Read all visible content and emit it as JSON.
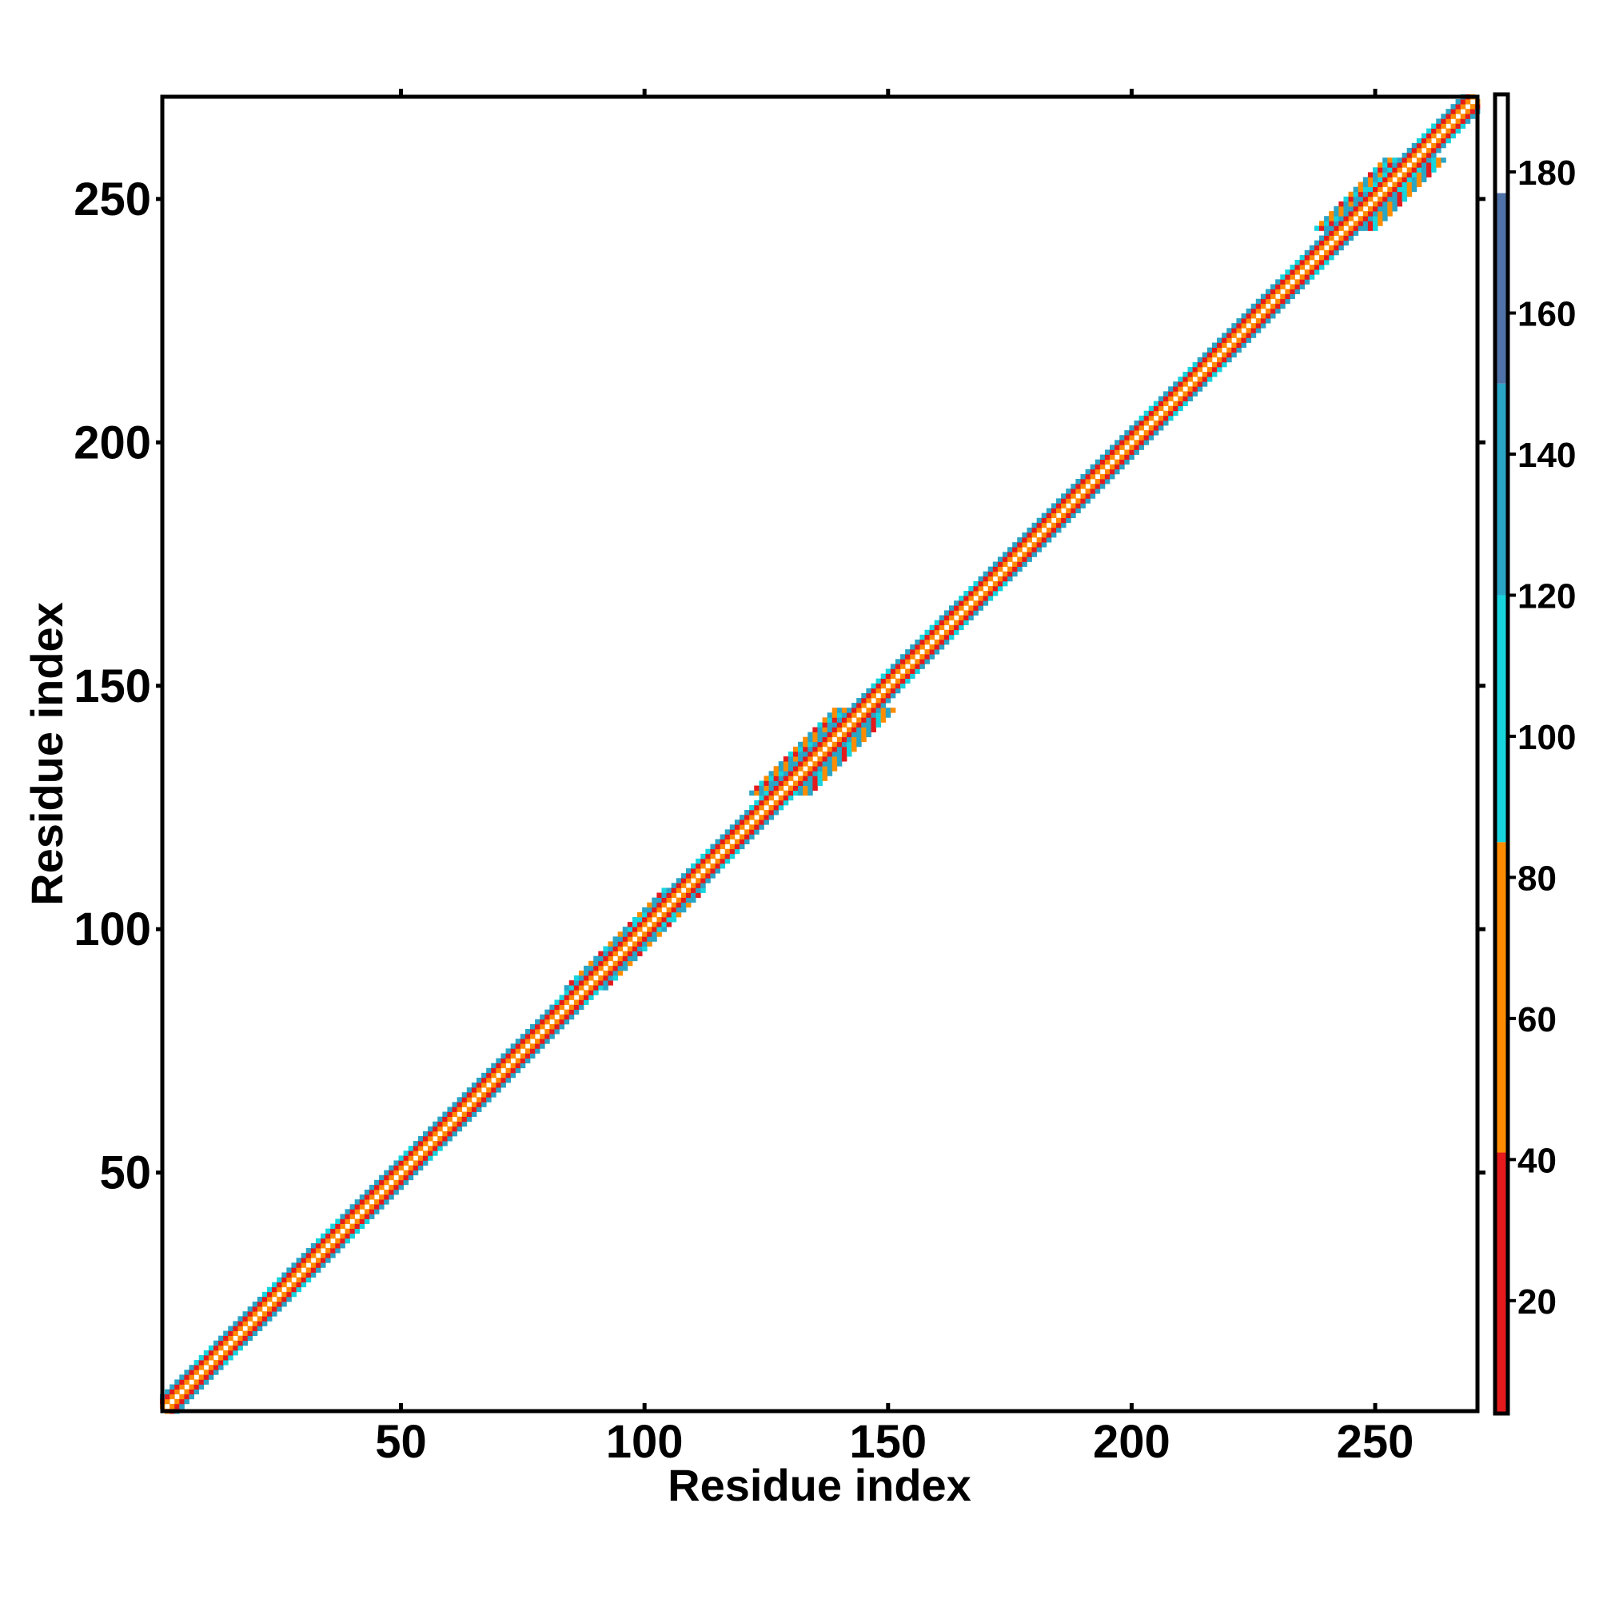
{
  "chart_data": {
    "type": "heatmap",
    "title": "",
    "xlabel": "Residue index",
    "ylabel": "Residue index",
    "xlim": [
      1,
      271
    ],
    "ylim": [
      1,
      271
    ],
    "x_ticks": [
      50,
      100,
      150,
      200,
      250
    ],
    "y_ticks": [
      50,
      100,
      150,
      200,
      250
    ],
    "colorbar": {
      "range": [
        4,
        191
      ],
      "ticks": [
        20,
        40,
        60,
        80,
        100,
        120,
        140,
        160,
        180
      ],
      "colors": [
        {
          "from": 4,
          "to": 41,
          "color": "#e41a1c"
        },
        {
          "from": 41,
          "to": 85,
          "color": "#ff8c00"
        },
        {
          "from": 85,
          "to": 120,
          "color": "#17d4dd"
        },
        {
          "from": 120,
          "to": 150,
          "color": "#2aa5c6"
        },
        {
          "from": 150,
          "to": 177,
          "color": "#4f73a8"
        },
        {
          "from": 177,
          "to": 191,
          "color": "#ffffff"
        }
      ]
    },
    "diagonal_band": {
      "description_values": "contact-map style band along the diagonal (x ≈ y)",
      "offsets": [
        {
          "d": 0,
          "value": 188
        },
        {
          "d": 1,
          "value": 60
        },
        {
          "d": 2,
          "value": 25
        },
        {
          "d": 3,
          "value": 135
        }
      ]
    },
    "wide_regions": [
      {
        "start": 88,
        "end": 108,
        "max_offset": 4
      },
      {
        "start": 128,
        "end": 145,
        "max_offset": 6
      },
      {
        "start": 168,
        "end": 200,
        "max_offset": 3
      },
      {
        "start": 244,
        "end": 258,
        "max_offset": 6
      }
    ],
    "highlight_segments": [
      {
        "start": 11,
        "end": 14,
        "value": 100
      },
      {
        "start": 25,
        "end": 28,
        "value": 100
      },
      {
        "start": 36,
        "end": 40,
        "value": 100
      },
      {
        "start": 53,
        "end": 55,
        "value": 100
      },
      {
        "start": 85,
        "end": 88,
        "value": 100
      },
      {
        "start": 100,
        "end": 103,
        "value": 100
      },
      {
        "start": 113,
        "end": 116,
        "value": 100
      },
      {
        "start": 125,
        "end": 128,
        "value": 100
      },
      {
        "start": 150,
        "end": 153,
        "value": 100
      },
      {
        "start": 160,
        "end": 163,
        "value": 100
      },
      {
        "start": 168,
        "end": 171,
        "value": 100
      },
      {
        "start": 205,
        "end": 208,
        "value": 100
      },
      {
        "start": 213,
        "end": 216,
        "value": 100
      },
      {
        "start": 234,
        "end": 238,
        "value": 100
      },
      {
        "start": 252,
        "end": 256,
        "value": 100
      },
      {
        "start": 262,
        "end": 265,
        "value": 100
      }
    ]
  }
}
